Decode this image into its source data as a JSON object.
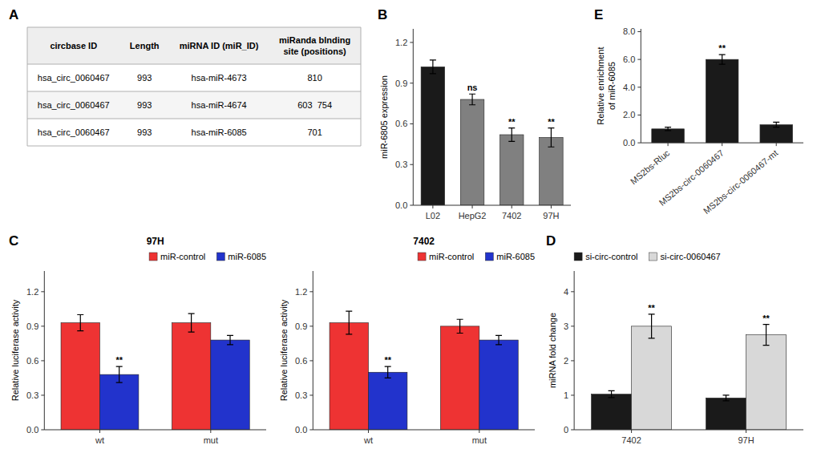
{
  "chart_data": [
    {
      "type": "table",
      "panel_label": "A",
      "columns": [
        "circbase ID",
        "Length",
        "miRNA ID (miR_ID)",
        "miRanda blnding\nsite (positions)"
      ],
      "rows": [
        [
          "hsa_circ_0060467",
          "993",
          "hsa-miR-4673",
          "810"
        ],
        [
          "hsa_circ_0060467",
          "993",
          "hsa-miR-4674",
          "603  754"
        ],
        [
          "hsa_circ_0060467",
          "993",
          "hsa-miR-6085",
          "701"
        ]
      ]
    },
    {
      "type": "bar",
      "panel_label": "B",
      "categories": [
        "L02",
        "HepG2",
        "7402",
        "97H"
      ],
      "values": [
        1.02,
        0.78,
        0.52,
        0.5
      ],
      "errors": [
        0.05,
        0.04,
        0.05,
        0.07
      ],
      "colors": [
        "#1a1a1a",
        "#808080",
        "#808080",
        "#808080"
      ],
      "ylabel": "miR-6805 expression",
      "ylim": [
        0,
        1.3
      ],
      "yticks": [
        {
          "value": 0,
          "label": "0.0"
        },
        0.3,
        0.6,
        0.9,
        1.2
      ],
      "annotations": [
        null,
        "ns",
        "**",
        "**"
      ]
    },
    {
      "type": "bar",
      "panel_label": "C",
      "title": "97H",
      "categories": [
        "wt",
        "mut"
      ],
      "series": [
        {
          "name": "miR-control",
          "color": "#ee3333",
          "values": [
            0.93,
            0.93
          ],
          "errors": [
            0.07,
            0.08
          ]
        },
        {
          "name": "miR-6085",
          "color": "#2233cc",
          "values": [
            0.48,
            0.78
          ],
          "errors": [
            0.07,
            0.04
          ],
          "annotations": [
            "**",
            null
          ]
        }
      ],
      "ylabel": "Relative luciferase activity",
      "ylim": [
        0,
        1.38
      ],
      "yticks": [
        {
          "value": 0,
          "label": "0.0"
        },
        0.3,
        0.6,
        0.9,
        1.2
      ],
      "legend": "upper right"
    },
    {
      "type": "bar",
      "title": "7402",
      "categories": [
        "wt",
        "mut"
      ],
      "series": [
        {
          "name": "miR-control",
          "color": "#ee3333",
          "values": [
            0.93,
            0.9
          ],
          "errors": [
            0.1,
            0.06
          ]
        },
        {
          "name": "miR-6085",
          "color": "#2233cc",
          "values": [
            0.5,
            0.78
          ],
          "errors": [
            0.05,
            0.04
          ],
          "annotations": [
            "**",
            null
          ]
        }
      ],
      "ylabel": "Relative luciferase activity",
      "ylim": [
        0,
        1.38
      ],
      "yticks": [
        {
          "value": 0,
          "label": "0.0"
        },
        0.3,
        0.6,
        0.9,
        1.2
      ],
      "legend": "upper right"
    },
    {
      "type": "bar",
      "panel_label": "D",
      "categories": [
        "7402",
        "97H"
      ],
      "series": [
        {
          "name": "si-circ-control",
          "color": "#1a1a1a",
          "values": [
            1.03,
            0.92
          ],
          "errors": [
            0.1,
            0.08
          ]
        },
        {
          "name": "si-circ-0060467",
          "color": "#d8d8d8",
          "values": [
            3.0,
            2.75
          ],
          "errors": [
            0.35,
            0.3
          ],
          "annotations": [
            "**",
            "**"
          ]
        }
      ],
      "ylabel": "miRNA fold change",
      "ylim": [
        0,
        4.6
      ],
      "yticks": [
        0,
        1,
        2,
        3,
        4
      ],
      "legend": "upper left"
    },
    {
      "type": "bar",
      "panel_label": "E",
      "categories": [
        "MS2bs-Rluc",
        "MS2bs-circ-0060467",
        "MS2bs-circ-0060467-mt"
      ],
      "values": [
        1.0,
        6.0,
        1.3
      ],
      "errors": [
        0.12,
        0.35,
        0.18
      ],
      "color": "#1a1a1a",
      "ylabel": "Relative enrichment\nof miR-6085",
      "ylim": [
        0,
        8.2
      ],
      "yticks": [
        {
          "value": 0,
          "label": "0.0"
        },
        {
          "value": 2,
          "label": "2.0"
        },
        {
          "value": 4,
          "label": "4.0"
        },
        {
          "value": 6,
          "label": "6.0"
        },
        {
          "value": 8,
          "label": "8.0"
        }
      ],
      "annotations": [
        null,
        "**",
        null
      ]
    }
  ]
}
